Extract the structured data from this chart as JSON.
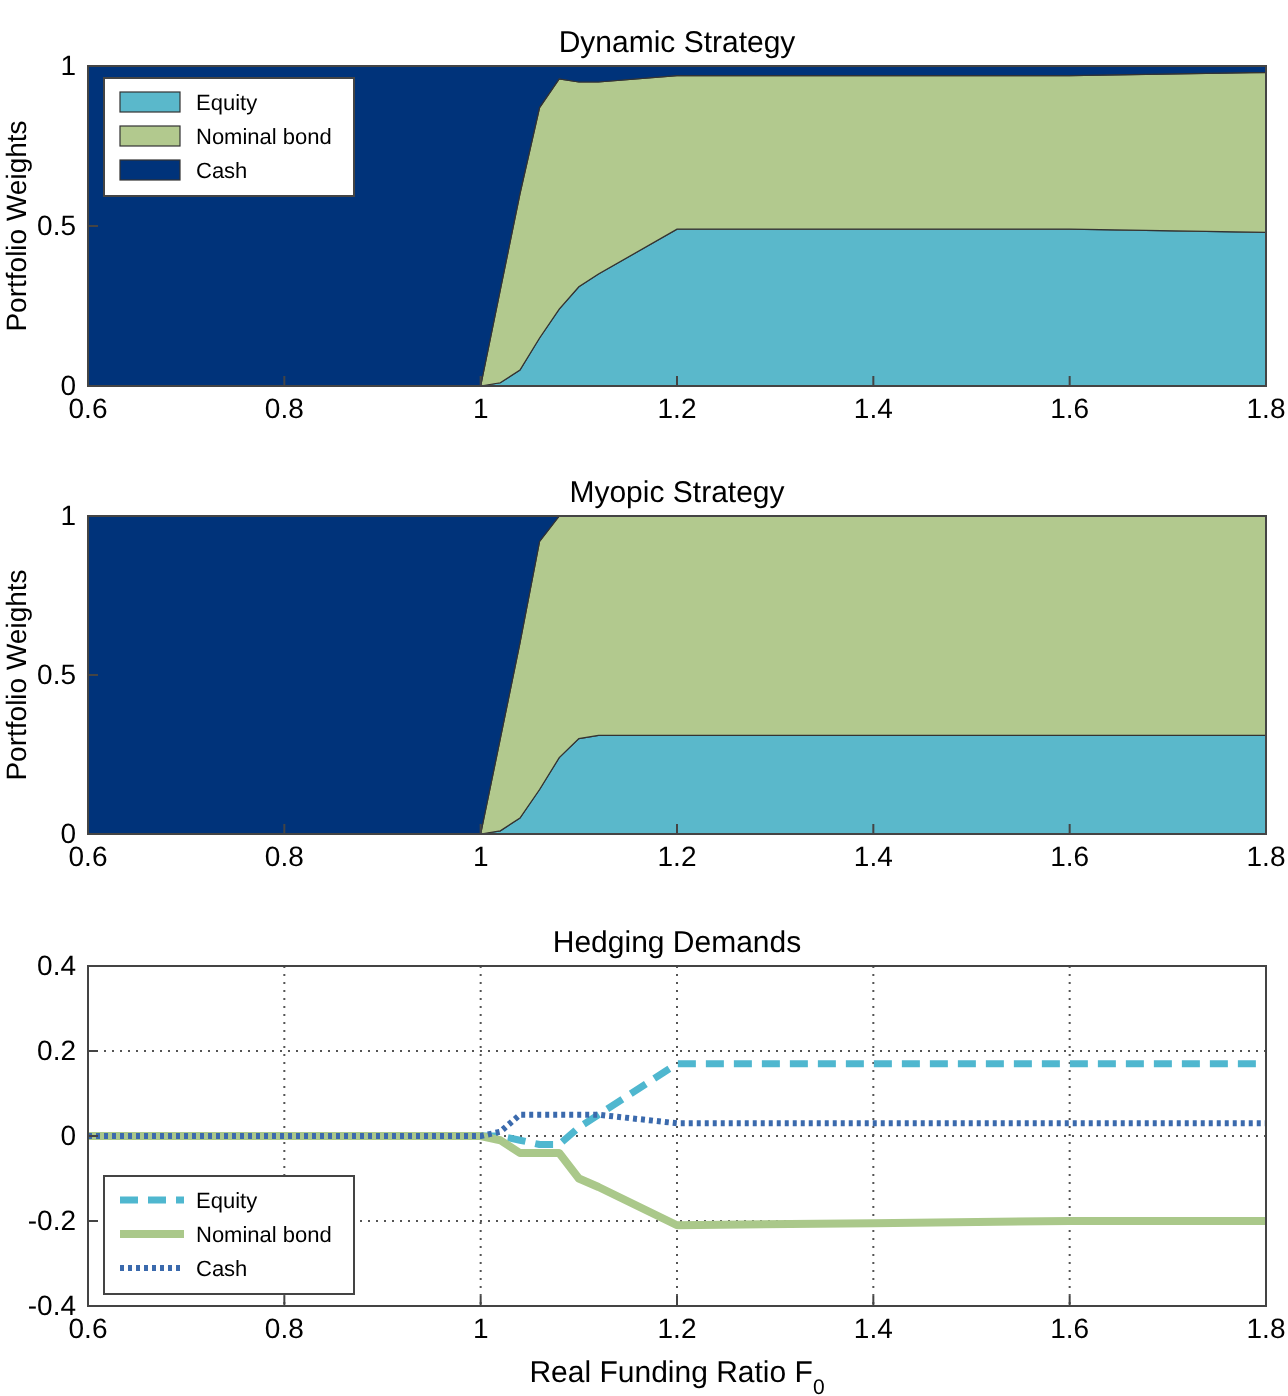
{
  "chart_data": [
    {
      "type": "area",
      "title": "Dynamic Strategy",
      "ylabel": "Portfolio Weights",
      "stacked": true,
      "legend": "top left",
      "x": [
        0.6,
        1.0,
        1.02,
        1.04,
        1.06,
        1.08,
        1.1,
        1.12,
        1.2,
        1.4,
        1.6,
        1.8
      ],
      "xlim": [
        0.6,
        1.8
      ],
      "xticks": [
        0.6,
        0.8,
        1,
        1.2,
        1.4,
        1.6,
        1.8
      ],
      "ylim": [
        0,
        1
      ],
      "yticks": [
        0,
        0.5,
        1
      ],
      "series": [
        {
          "name": "Equity",
          "color": "#5ab8cb",
          "values": [
            0,
            0,
            0.01,
            0.05,
            0.15,
            0.24,
            0.31,
            0.35,
            0.49,
            0.49,
            0.49,
            0.48
          ]
        },
        {
          "name": "Nominal bond",
          "color": "#b2c98e",
          "values": [
            0,
            0,
            0.29,
            0.55,
            0.72,
            0.72,
            0.64,
            0.6,
            0.48,
            0.48,
            0.48,
            0.5
          ]
        },
        {
          "name": "Cash",
          "color": "#00337a",
          "values": [
            1,
            1,
            0.7,
            0.4,
            0.13,
            0.04,
            0.05,
            0.05,
            0.03,
            0.03,
            0.03,
            0.02
          ]
        }
      ]
    },
    {
      "type": "area",
      "title": "Myopic Strategy",
      "ylabel": "Portfolio Weights",
      "stacked": true,
      "x": [
        0.6,
        1.0,
        1.02,
        1.04,
        1.06,
        1.08,
        1.1,
        1.12,
        1.2,
        1.4,
        1.6,
        1.8
      ],
      "xlim": [
        0.6,
        1.8
      ],
      "xticks": [
        0.6,
        0.8,
        1,
        1.2,
        1.4,
        1.6,
        1.8
      ],
      "ylim": [
        0,
        1
      ],
      "yticks": [
        0,
        0.5,
        1
      ],
      "series": [
        {
          "color": "#5ab8cb",
          "values": [
            0,
            0,
            0.01,
            0.05,
            0.14,
            0.24,
            0.3,
            0.31,
            0.31,
            0.31,
            0.31,
            0.31
          ]
        },
        {
          "color": "#b2c98e",
          "values": [
            0,
            0,
            0.29,
            0.55,
            0.78,
            0.76,
            0.7,
            0.69,
            0.69,
            0.69,
            0.69,
            0.69
          ]
        },
        {
          "color": "#00337a",
          "values": [
            1,
            1,
            0.7,
            0.4,
            0.08,
            0,
            null,
            null,
            null,
            null,
            null,
            null
          ]
        }
      ]
    },
    {
      "type": "line",
      "title": "Hedging Demands",
      "xlabel": "Real Funding Ratio F$_{0}$",
      "legend": "bottom left",
      "grid": true,
      "x": [
        0.6,
        1.0,
        1.02,
        1.04,
        1.06,
        1.08,
        1.1,
        1.12,
        1.2,
        1.4,
        1.6,
        1.8
      ],
      "xlim": [
        0.6,
        1.8
      ],
      "xticks": [
        0.6,
        0.8,
        1,
        1.2,
        1.4,
        1.6,
        1.8
      ],
      "ylim": [
        -0.4,
        0.4
      ],
      "yticks": [
        -0.4,
        -0.2,
        0,
        0.2,
        0.4
      ],
      "series": [
        {
          "name": "Equity",
          "color": "#4fb7cf",
          "line_style": "dashed",
          "values": [
            0,
            0,
            0,
            -0.01,
            -0.02,
            -0.02,
            0.02,
            0.05,
            0.17,
            0.17,
            0.17,
            0.17
          ]
        },
        {
          "name": "Nominal bond",
          "color": "#aac88a",
          "line_style": "solid",
          "values": [
            0,
            0,
            -0.01,
            -0.04,
            -0.04,
            -0.04,
            -0.1,
            -0.12,
            -0.21,
            -0.205,
            -0.2,
            -0.2
          ]
        },
        {
          "name": "Cash",
          "color": "#3b6aad",
          "line_style": "dotted",
          "values": [
            0,
            0,
            0.01,
            0.05,
            0.05,
            0.05,
            0.05,
            0.05,
            0.03,
            0.03,
            0.03,
            0.03
          ]
        }
      ]
    }
  ]
}
